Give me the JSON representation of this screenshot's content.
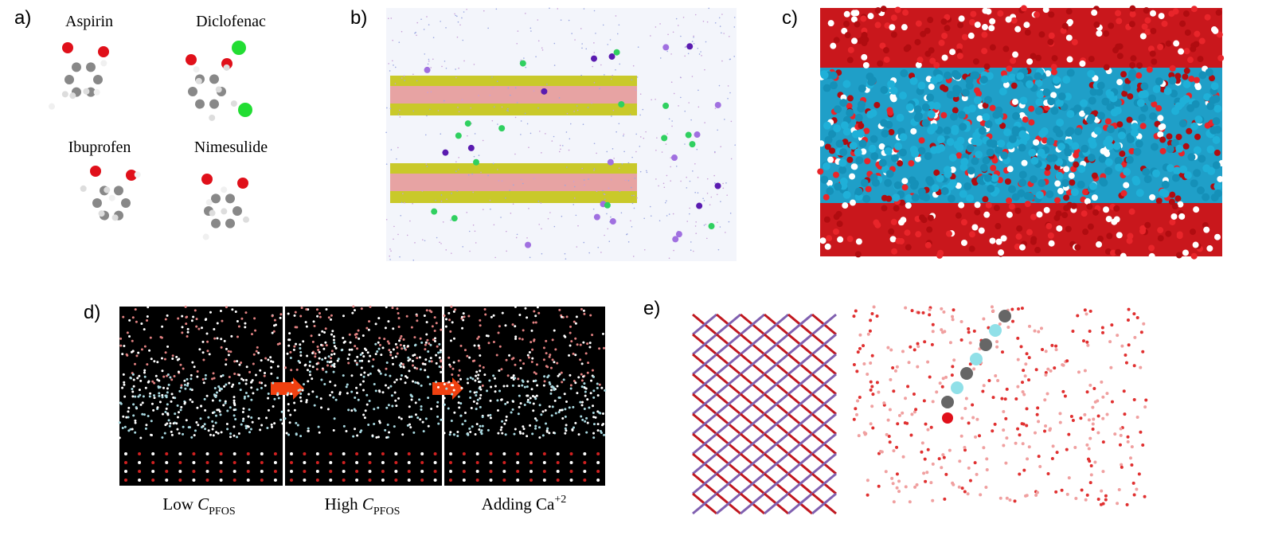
{
  "panels": [
    {
      "label": "a)",
      "molecules": [
        "Aspirin",
        "Diclofenac",
        "Ibuprofen",
        "Nimesulide"
      ]
    },
    {
      "label": "b)"
    },
    {
      "label": "c)"
    },
    {
      "label": "d)",
      "captions": [
        {
          "text": "Low",
          "symbol": "C",
          "subscript": "PFOS"
        },
        {
          "text": "High",
          "symbol": "C",
          "subscript": "PFOS"
        },
        {
          "text": "Adding Ca",
          "superscript": "+2"
        }
      ]
    },
    {
      "label": "e)"
    }
  ]
}
